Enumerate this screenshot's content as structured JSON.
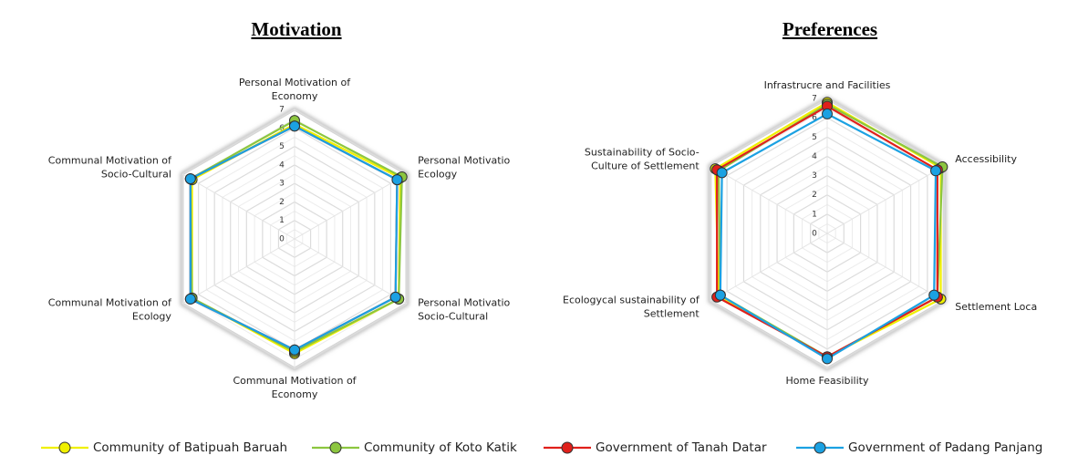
{
  "chart_data": [
    {
      "type": "radar",
      "title": "Motivation",
      "categories": [
        [
          "Personal Motivation of",
          "Economy"
        ],
        [
          "Personal Motivatio",
          "Ecology"
        ],
        [
          "Personal Motivatio",
          "Socio-Cultural"
        ],
        [
          "Communal Motivation of",
          "Economy"
        ],
        [
          "Communal Motivation of",
          "Ecology"
        ],
        [
          "Communal Motivation of",
          "Socio-Cultural"
        ]
      ],
      "rlim": [
        0,
        7
      ],
      "rticks": [
        0,
        1,
        2,
        3,
        4,
        5,
        6,
        7
      ],
      "series": [
        {
          "values": [
            6.2,
            6.6,
            6.5,
            6.2,
            6.4,
            6.4
          ]
        },
        {
          "values": [
            6.4,
            6.7,
            6.5,
            6.1,
            6.4,
            6.5
          ]
        },
        {
          "values": [
            6.1,
            6.4,
            6.3,
            6.0,
            6.5,
            6.5
          ]
        },
        {
          "values": [
            6.1,
            6.4,
            6.3,
            6.0,
            6.5,
            6.5
          ]
        }
      ]
    },
    {
      "type": "radar",
      "title": "Preferences",
      "categories": [
        [
          "Infrastrucre and Facilities"
        ],
        [
          "Accessibility"
        ],
        [
          "Settlement Loca"
        ],
        [
          "Home Feasibility"
        ],
        [
          "Ecologycal sustainability of",
          "Settlement"
        ],
        [
          "Sustainability of Socio-",
          "Culture of Settlement"
        ]
      ],
      "rlim": [
        0,
        7
      ],
      "rticks": [
        0,
        1,
        2,
        3,
        4,
        5,
        6,
        7
      ],
      "series": [
        {
          "values": [
            6.8,
            6.8,
            6.8,
            6.4,
            6.5,
            6.7
          ]
        },
        {
          "values": [
            6.7,
            6.9,
            6.6,
            6.4,
            6.4,
            6.5
          ]
        },
        {
          "values": [
            6.6,
            6.6,
            6.6,
            6.4,
            6.6,
            6.6
          ]
        },
        {
          "values": [
            6.2,
            6.5,
            6.4,
            6.5,
            6.4,
            6.3
          ]
        }
      ]
    }
  ],
  "legend": {
    "series": [
      {
        "name": "Community of Batipuah Baruah",
        "color": "#f0f000"
      },
      {
        "name": "Community of Koto Katik",
        "color": "#8cc63f"
      },
      {
        "name": "Government of Tanah Datar",
        "color": "#e0201b"
      },
      {
        "name": "Government of Padang Panjang",
        "color": "#1ba1e2"
      }
    ]
  }
}
